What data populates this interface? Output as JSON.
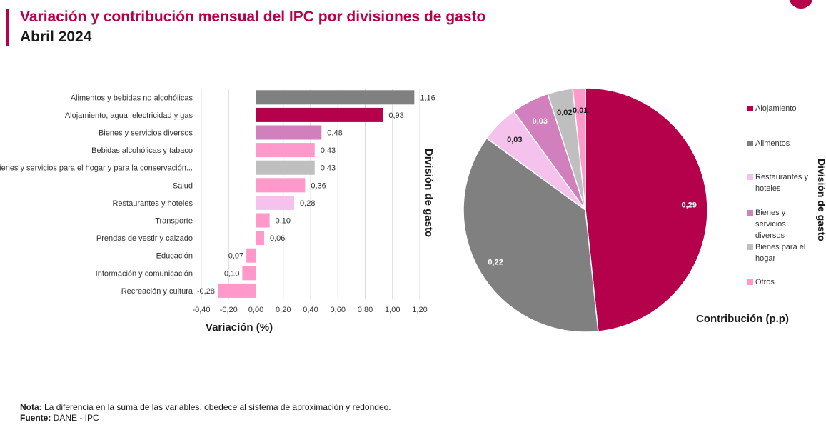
{
  "header": {
    "title": "Variación y contribución mensual del IPC por divisiones de gasto",
    "subtitle": "Abril 2024"
  },
  "colors": {
    "brand": "#b5004b",
    "dark_gray": "#808080",
    "light_gray": "#bfbfbf",
    "orchid": "#d17fbd",
    "pink": "#ff99cc",
    "light_pink": "#f4c2ec"
  },
  "chart_data": [
    {
      "type": "bar",
      "orientation": "horizontal",
      "categories": [
        "Alimentos y bebidas no alcohólicas",
        "Alojamiento, agua, electricidad y gas",
        "Bienes y servicios diversos",
        "Bebidas alcohólicas y tabaco",
        "Bienes y servicios para el hogar y para la conservación...",
        "Salud",
        "Restaurantes y hoteles",
        "Transporte",
        "Prendas de vestir y calzado",
        "Educación",
        "Información y comunicación",
        "Recreación y cultura"
      ],
      "values": [
        1.16,
        0.93,
        0.48,
        0.43,
        0.43,
        0.36,
        0.28,
        0.1,
        0.06,
        -0.07,
        -0.1,
        -0.28
      ],
      "value_labels": [
        "1,16",
        "0,93",
        "0,48",
        "0,43",
        "0,43",
        "0,36",
        "0,28",
        "0,10",
        "0,06",
        "-0,07",
        "-0,10",
        "-0,28"
      ],
      "bar_colors": [
        "#808080",
        "#b5004b",
        "#d17fbd",
        "#ff99cc",
        "#bfbfbf",
        "#ff99cc",
        "#f4c2ec",
        "#ff99cc",
        "#ff99cc",
        "#ff99cc",
        "#ff99cc",
        "#ff99cc"
      ],
      "xlim": [
        -0.4,
        1.2
      ],
      "xticks": [
        -0.4,
        -0.2,
        0.0,
        0.2,
        0.4,
        0.6,
        0.8,
        1.0,
        1.2
      ],
      "xtick_labels": [
        "-0,40",
        "-0,20",
        "0,00",
        "0,20",
        "0,40",
        "0,60",
        "0,80",
        "1,00",
        "1,20"
      ],
      "xlabel": "Variación (%)",
      "ylabel": "División de gasto",
      "grid": true
    },
    {
      "type": "pie",
      "labels": [
        "Alojamiento",
        "Alimentos",
        "Restaurantes y hoteles",
        "Bienes y servicios diversos",
        "Bienes para el hogar",
        "Otros"
      ],
      "values": [
        0.29,
        0.22,
        0.03,
        0.03,
        0.02,
        0.01
      ],
      "value_labels": [
        "0,29",
        "0,22",
        "0,03",
        "0,03",
        "0,02",
        "0,01"
      ],
      "colors": [
        "#b5004b",
        "#808080",
        "#f4c2ec",
        "#d17fbd",
        "#bfbfbf",
        "#ff99cc"
      ],
      "label_colors": [
        "#ffffff",
        "#ffffff",
        "#1a1a1a",
        "#ffffff",
        "#1a1a1a",
        "#1a1a1a"
      ],
      "xlabel": "Contribución (p.p)",
      "ylabel": "División de gasto",
      "legend": "right"
    }
  ],
  "footer": {
    "note_label": "Nota:",
    "note_text": " La diferencia en la suma de las variables, obedece al sistema de aproximación y redondeo.",
    "source_label": "Fuente:",
    "source_text": " DANE - IPC"
  }
}
